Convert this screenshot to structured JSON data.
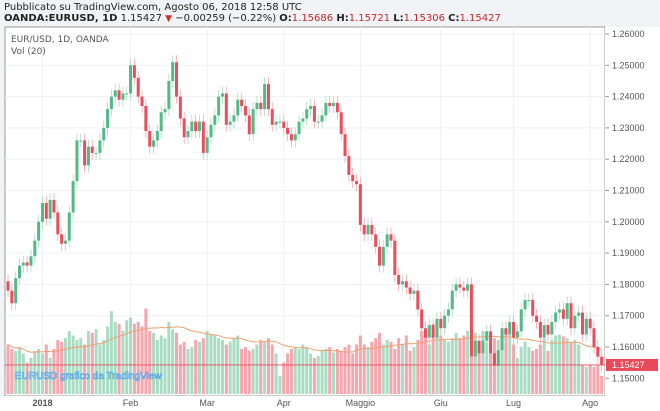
{
  "header": {
    "published": "Pubblicato su TradingView.com, Agosto 06, 2018 12:58 UTC",
    "symbol": "OANDA:EURUSD, 1D",
    "last": "1.15427",
    "change": "−0.00259 (−0.22%)",
    "o_label": "O:",
    "o": "1.15686",
    "h_label": "H:",
    "h": "1.15721",
    "l_label": "L:",
    "l": "1.15306",
    "c_label": "C:",
    "c": "1.15427"
  },
  "legend": {
    "title": "EUR/USD, 1D, OANDA",
    "vol": "Vol (20)"
  },
  "watermark": "EURUSD grafico da TradingView",
  "colors": {
    "up": "#53b987",
    "down": "#eb4d5c",
    "up_vol": "#a9dcc3",
    "down_vol": "#f5a6ae",
    "ma": "#f0a070",
    "last": "#e84a5a"
  },
  "chart_data": {
    "type": "candlestick",
    "title": "EUR/USD, 1D, OANDA",
    "ylim": [
      1.145,
      1.262
    ],
    "y_ticks": [
      "1.26000",
      "1.25000",
      "1.24000",
      "1.23000",
      "1.22000",
      "1.21000",
      "1.20000",
      "1.19000",
      "1.18000",
      "1.17000",
      "1.16000",
      "1.15000"
    ],
    "y_tick_values": [
      1.26,
      1.25,
      1.24,
      1.23,
      1.22,
      1.21,
      1.2,
      1.19,
      1.18,
      1.17,
      1.16,
      1.15
    ],
    "last_price_label": "1.15427",
    "last_price": 1.15427,
    "first_open": 1.181,
    "wick": 0.0022,
    "x_labels": [
      {
        "label": "2018",
        "index": 9
      },
      {
        "label": "Feb",
        "index": 32
      },
      {
        "label": "Mar",
        "index": 52
      },
      {
        "label": "Apr",
        "index": 72
      },
      {
        "label": "Maggio",
        "index": 92
      },
      {
        "label": "Giu",
        "index": 113
      },
      {
        "label": "Lug",
        "index": 132
      },
      {
        "label": "Ago",
        "index": 152
      }
    ],
    "close": [
      1.178,
      1.174,
      1.182,
      1.186,
      1.187,
      1.186,
      1.189,
      1.194,
      1.2,
      1.206,
      1.201,
      1.207,
      1.203,
      1.196,
      1.193,
      1.194,
      1.203,
      1.213,
      1.226,
      1.226,
      1.218,
      1.224,
      1.222,
      1.222,
      1.226,
      1.23,
      1.236,
      1.24,
      1.242,
      1.239,
      1.241,
      1.241,
      1.25,
      1.246,
      1.24,
      1.237,
      1.229,
      1.224,
      1.226,
      1.229,
      1.235,
      1.236,
      1.245,
      1.251,
      1.24,
      1.233,
      1.227,
      1.229,
      1.232,
      1.229,
      1.232,
      1.222,
      1.227,
      1.231,
      1.234,
      1.24,
      1.241,
      1.231,
      1.232,
      1.234,
      1.239,
      1.237,
      1.234,
      1.228,
      1.236,
      1.238,
      1.236,
      1.244,
      1.236,
      1.231,
      1.232,
      1.232,
      1.23,
      1.228,
      1.226,
      1.228,
      1.232,
      1.233,
      1.236,
      1.237,
      1.232,
      1.232,
      1.234,
      1.238,
      1.237,
      1.238,
      1.235,
      1.228,
      1.221,
      1.215,
      1.213,
      1.212,
      1.199,
      1.196,
      1.199,
      1.196,
      1.192,
      1.186,
      1.192,
      1.196,
      1.194,
      1.183,
      1.18,
      1.181,
      1.179,
      1.177,
      1.178,
      1.172,
      1.166,
      1.163,
      1.167,
      1.163,
      1.169,
      1.166,
      1.17,
      1.172,
      1.178,
      1.18,
      1.179,
      1.178,
      1.18,
      1.157,
      1.162,
      1.158,
      1.162,
      1.165,
      1.158,
      1.154,
      1.159,
      1.166,
      1.164,
      1.168,
      1.163,
      1.165,
      1.172,
      1.175,
      1.175,
      1.17,
      1.168,
      1.163,
      1.167,
      1.164,
      1.168,
      1.171,
      1.172,
      1.169,
      1.174,
      1.166,
      1.17,
      1.171,
      1.164,
      1.169,
      1.166,
      1.16,
      1.1569,
      1.15427
    ],
    "volume": [
      55,
      50,
      48,
      52,
      45,
      35,
      40,
      48,
      50,
      45,
      55,
      40,
      50,
      60,
      58,
      62,
      70,
      65,
      60,
      62,
      55,
      70,
      68,
      72,
      55,
      60,
      75,
      92,
      80,
      78,
      70,
      82,
      85,
      78,
      80,
      75,
      95,
      70,
      68,
      60,
      65,
      62,
      80,
      72,
      68,
      55,
      58,
      50,
      52,
      60,
      58,
      62,
      70,
      66,
      65,
      62,
      60,
      55,
      58,
      62,
      65,
      50,
      52,
      48,
      50,
      55,
      60,
      58,
      62,
      55,
      45,
      20,
      35,
      45,
      50,
      52,
      50,
      55,
      52,
      45,
      40,
      42,
      48,
      50,
      52,
      46,
      50,
      48,
      52,
      55,
      45,
      55,
      65,
      55,
      52,
      58,
      62,
      68,
      55,
      60,
      58,
      50,
      62,
      55,
      65,
      48,
      52,
      60,
      70,
      65,
      55,
      78,
      68,
      65,
      60,
      58,
      62,
      68,
      62,
      65,
      70,
      72,
      68,
      55,
      70,
      58,
      52,
      62,
      60,
      55,
      70,
      66,
      55,
      40,
      52,
      58,
      52,
      48,
      50,
      55,
      62,
      48,
      60,
      65,
      66,
      64,
      62,
      58,
      60,
      55,
      32,
      30,
      32,
      30,
      32,
      20
    ],
    "volume_ma_period": 20
  }
}
